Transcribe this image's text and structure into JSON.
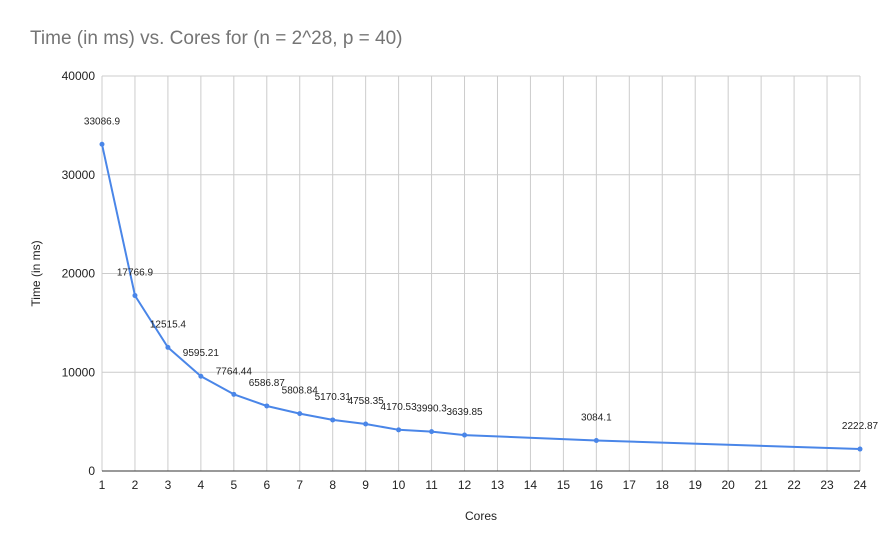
{
  "chart_data": {
    "type": "line",
    "title": "Time (in ms) vs. Cores for (n = 2^28, p = 40)",
    "xlabel": "Cores",
    "ylabel": "Time (in ms)",
    "xlim": [
      1,
      24
    ],
    "ylim": [
      0,
      40000
    ],
    "x_ticks": [
      1,
      2,
      3,
      4,
      5,
      6,
      7,
      8,
      9,
      10,
      11,
      12,
      13,
      14,
      15,
      16,
      17,
      18,
      19,
      20,
      21,
      22,
      23,
      24
    ],
    "y_ticks": [
      0,
      10000,
      20000,
      30000,
      40000
    ],
    "grid": true,
    "legend": "none",
    "color": "#4a86e8",
    "series": [
      {
        "x": [
          1,
          2,
          3,
          4,
          5,
          6,
          7,
          8,
          9,
          10,
          11,
          12,
          16,
          24
        ],
        "values": [
          33086.9,
          17766.9,
          12515.4,
          9595.21,
          7764.44,
          6586.87,
          5808.84,
          5170.31,
          4758.35,
          4170.53,
          3990.3,
          3639.85,
          3084.1,
          2222.87
        ],
        "labels": [
          "33086.9",
          "17766.9",
          "12515.4",
          "9595.21",
          "7764.44",
          "6586.87",
          "5808.84",
          "5170.31",
          "4758.35",
          "4170.53",
          "3990.3",
          "3639.85",
          "3084.1",
          "2222.87"
        ]
      }
    ]
  }
}
